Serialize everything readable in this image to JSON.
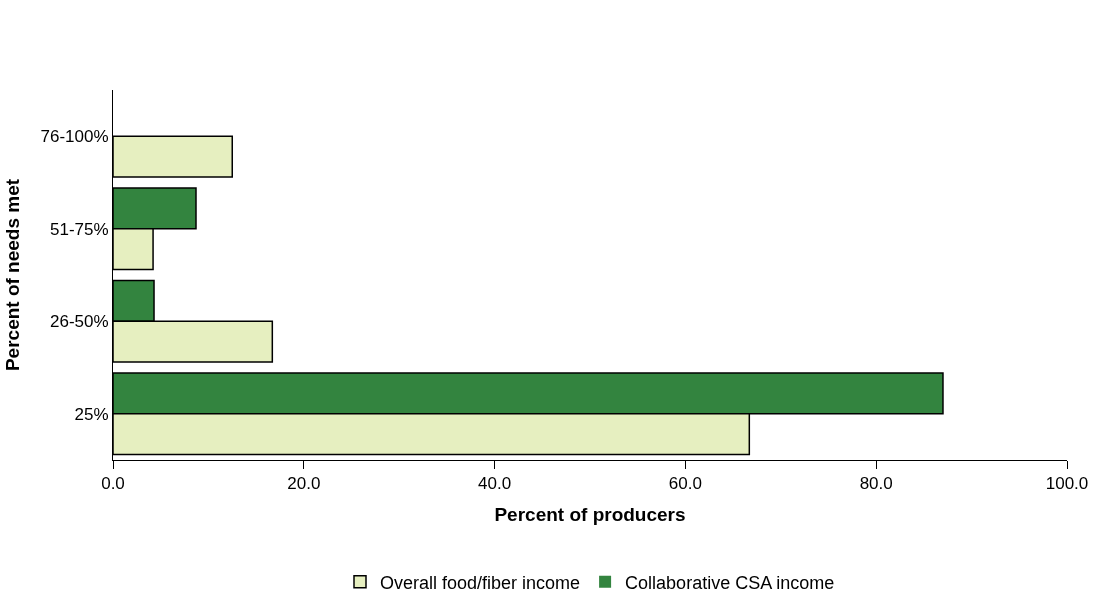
{
  "chart_data": {
    "type": "bar",
    "orientation": "horizontal",
    "xlabel": "Percent of producers",
    "ylabel": "Percent of needs met",
    "categories": [
      "76-100%",
      "51-75%",
      "26-50%",
      "25%"
    ],
    "series": [
      {
        "name": "Overall food/fiber income",
        "color": "#e6efc0",
        "values": [
          12.5,
          4.2,
          16.7,
          66.7
        ]
      },
      {
        "name": "Collaborative CSA income",
        "color": "#33843f",
        "values": [
          0,
          8.7,
          4.3,
          87.0
        ]
      }
    ],
    "xlim": [
      0,
      100
    ],
    "xticks": [
      {
        "value": 0,
        "label": "0.0"
      },
      {
        "value": 20,
        "label": "20.0"
      },
      {
        "value": 40,
        "label": "40.0"
      },
      {
        "value": 60,
        "label": "60.0"
      },
      {
        "value": 80,
        "label": "80.0"
      },
      {
        "value": 100,
        "label": "100.0"
      }
    ],
    "grid": false,
    "legend": "bottom"
  }
}
